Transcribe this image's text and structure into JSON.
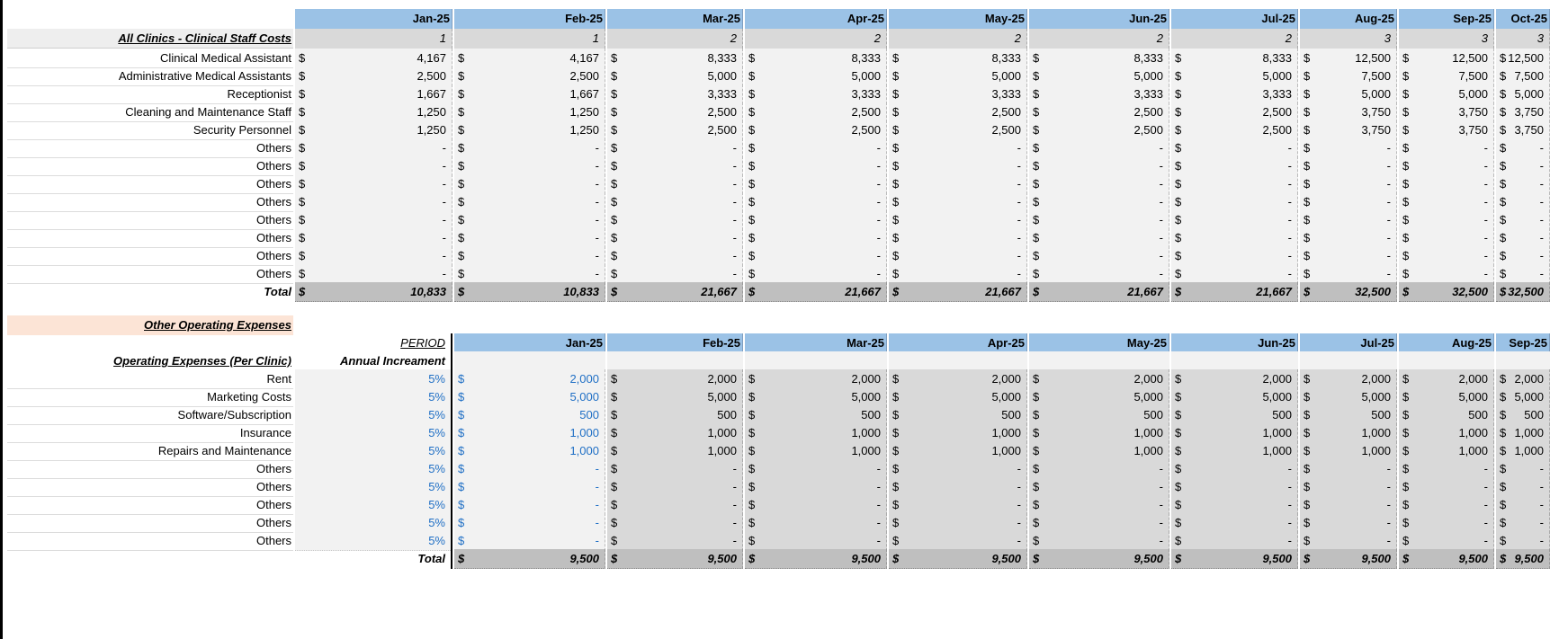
{
  "staff": {
    "section_label": "All Clinics - Clinical Staff Costs",
    "months": [
      "Jan-25",
      "Feb-25",
      "Mar-25",
      "Apr-25",
      "May-25",
      "Jun-25",
      "Jul-25",
      "Aug-25",
      "Sep-25",
      "Oct-25"
    ],
    "counts": [
      "1",
      "1",
      "2",
      "2",
      "2",
      "2",
      "2",
      "3",
      "3",
      "3"
    ],
    "currency": "$",
    "rows": [
      {
        "label": "Clinical Medical Assistant",
        "values": [
          "4,167",
          "4,167",
          "8,333",
          "8,333",
          "8,333",
          "8,333",
          "8,333",
          "12,500",
          "12,500",
          "12,500"
        ]
      },
      {
        "label": "Administrative Medical Assistants",
        "values": [
          "2,500",
          "2,500",
          "5,000",
          "5,000",
          "5,000",
          "5,000",
          "5,000",
          "7,500",
          "7,500",
          "7,500"
        ]
      },
      {
        "label": "Receptionist",
        "values": [
          "1,667",
          "1,667",
          "3,333",
          "3,333",
          "3,333",
          "3,333",
          "3,333",
          "5,000",
          "5,000",
          "5,000"
        ]
      },
      {
        "label": "Cleaning and Maintenance Staff",
        "values": [
          "1,250",
          "1,250",
          "2,500",
          "2,500",
          "2,500",
          "2,500",
          "2,500",
          "3,750",
          "3,750",
          "3,750"
        ]
      },
      {
        "label": "Security Personnel",
        "values": [
          "1,250",
          "1,250",
          "2,500",
          "2,500",
          "2,500",
          "2,500",
          "2,500",
          "3,750",
          "3,750",
          "3,750"
        ]
      },
      {
        "label": "Others",
        "values": [
          "-",
          "-",
          "-",
          "-",
          "-",
          "-",
          "-",
          "-",
          "-",
          "-"
        ]
      },
      {
        "label": "Others",
        "values": [
          "-",
          "-",
          "-",
          "-",
          "-",
          "-",
          "-",
          "-",
          "-",
          "-"
        ]
      },
      {
        "label": "Others",
        "values": [
          "-",
          "-",
          "-",
          "-",
          "-",
          "-",
          "-",
          "-",
          "-",
          "-"
        ]
      },
      {
        "label": "Others",
        "values": [
          "-",
          "-",
          "-",
          "-",
          "-",
          "-",
          "-",
          "-",
          "-",
          "-"
        ]
      },
      {
        "label": "Others",
        "values": [
          "-",
          "-",
          "-",
          "-",
          "-",
          "-",
          "-",
          "-",
          "-",
          "-"
        ]
      },
      {
        "label": "Others",
        "values": [
          "-",
          "-",
          "-",
          "-",
          "-",
          "-",
          "-",
          "-",
          "-",
          "-"
        ]
      },
      {
        "label": "Others",
        "values": [
          "-",
          "-",
          "-",
          "-",
          "-",
          "-",
          "-",
          "-",
          "-",
          "-"
        ]
      },
      {
        "label": "Others",
        "values": [
          "-",
          "-",
          "-",
          "-",
          "-",
          "-",
          "-",
          "-",
          "-",
          "-"
        ]
      }
    ],
    "total_label": "Total",
    "totals": [
      "10,833",
      "10,833",
      "21,667",
      "21,667",
      "21,667",
      "21,667",
      "21,667",
      "32,500",
      "32,500",
      "32,500"
    ]
  },
  "opex": {
    "section_title": "Other Operating Expenses",
    "period_label": "PERIOD",
    "table_label": "Operating Expenses (Per Clinic)",
    "increment_label": "Annual Increament",
    "months": [
      "Jan-25",
      "Feb-25",
      "Mar-25",
      "Apr-25",
      "May-25",
      "Jun-25",
      "Jul-25",
      "Aug-25",
      "Sep-25"
    ],
    "currency": "$",
    "rows": [
      {
        "label": "Rent",
        "inc": "5%",
        "values": [
          "2,000",
          "2,000",
          "2,000",
          "2,000",
          "2,000",
          "2,000",
          "2,000",
          "2,000",
          "2,000"
        ]
      },
      {
        "label": "Marketing Costs",
        "inc": "5%",
        "values": [
          "5,000",
          "5,000",
          "5,000",
          "5,000",
          "5,000",
          "5,000",
          "5,000",
          "5,000",
          "5,000"
        ]
      },
      {
        "label": "Software/Subscription",
        "inc": "5%",
        "values": [
          "500",
          "500",
          "500",
          "500",
          "500",
          "500",
          "500",
          "500",
          "500"
        ]
      },
      {
        "label": "Insurance",
        "inc": "5%",
        "values": [
          "1,000",
          "1,000",
          "1,000",
          "1,000",
          "1,000",
          "1,000",
          "1,000",
          "1,000",
          "1,000"
        ]
      },
      {
        "label": "Repairs and Maintenance",
        "inc": "5%",
        "values": [
          "1,000",
          "1,000",
          "1,000",
          "1,000",
          "1,000",
          "1,000",
          "1,000",
          "1,000",
          "1,000"
        ]
      },
      {
        "label": "Others",
        "inc": "5%",
        "values": [
          "-",
          "-",
          "-",
          "-",
          "-",
          "-",
          "-",
          "-",
          "-"
        ]
      },
      {
        "label": "Others",
        "inc": "5%",
        "values": [
          "-",
          "-",
          "-",
          "-",
          "-",
          "-",
          "-",
          "-",
          "-"
        ]
      },
      {
        "label": "Others",
        "inc": "5%",
        "values": [
          "-",
          "-",
          "-",
          "-",
          "-",
          "-",
          "-",
          "-",
          "-"
        ]
      },
      {
        "label": "Others",
        "inc": "5%",
        "values": [
          "-",
          "-",
          "-",
          "-",
          "-",
          "-",
          "-",
          "-",
          "-"
        ]
      },
      {
        "label": "Others",
        "inc": "5%",
        "values": [
          "-",
          "-",
          "-",
          "-",
          "-",
          "-",
          "-",
          "-",
          "-"
        ]
      }
    ],
    "total_label": "Total",
    "totals": [
      "9,500",
      "9,500",
      "9,500",
      "9,500",
      "9,500",
      "9,500",
      "9,500",
      "9,500",
      "9,500"
    ]
  }
}
